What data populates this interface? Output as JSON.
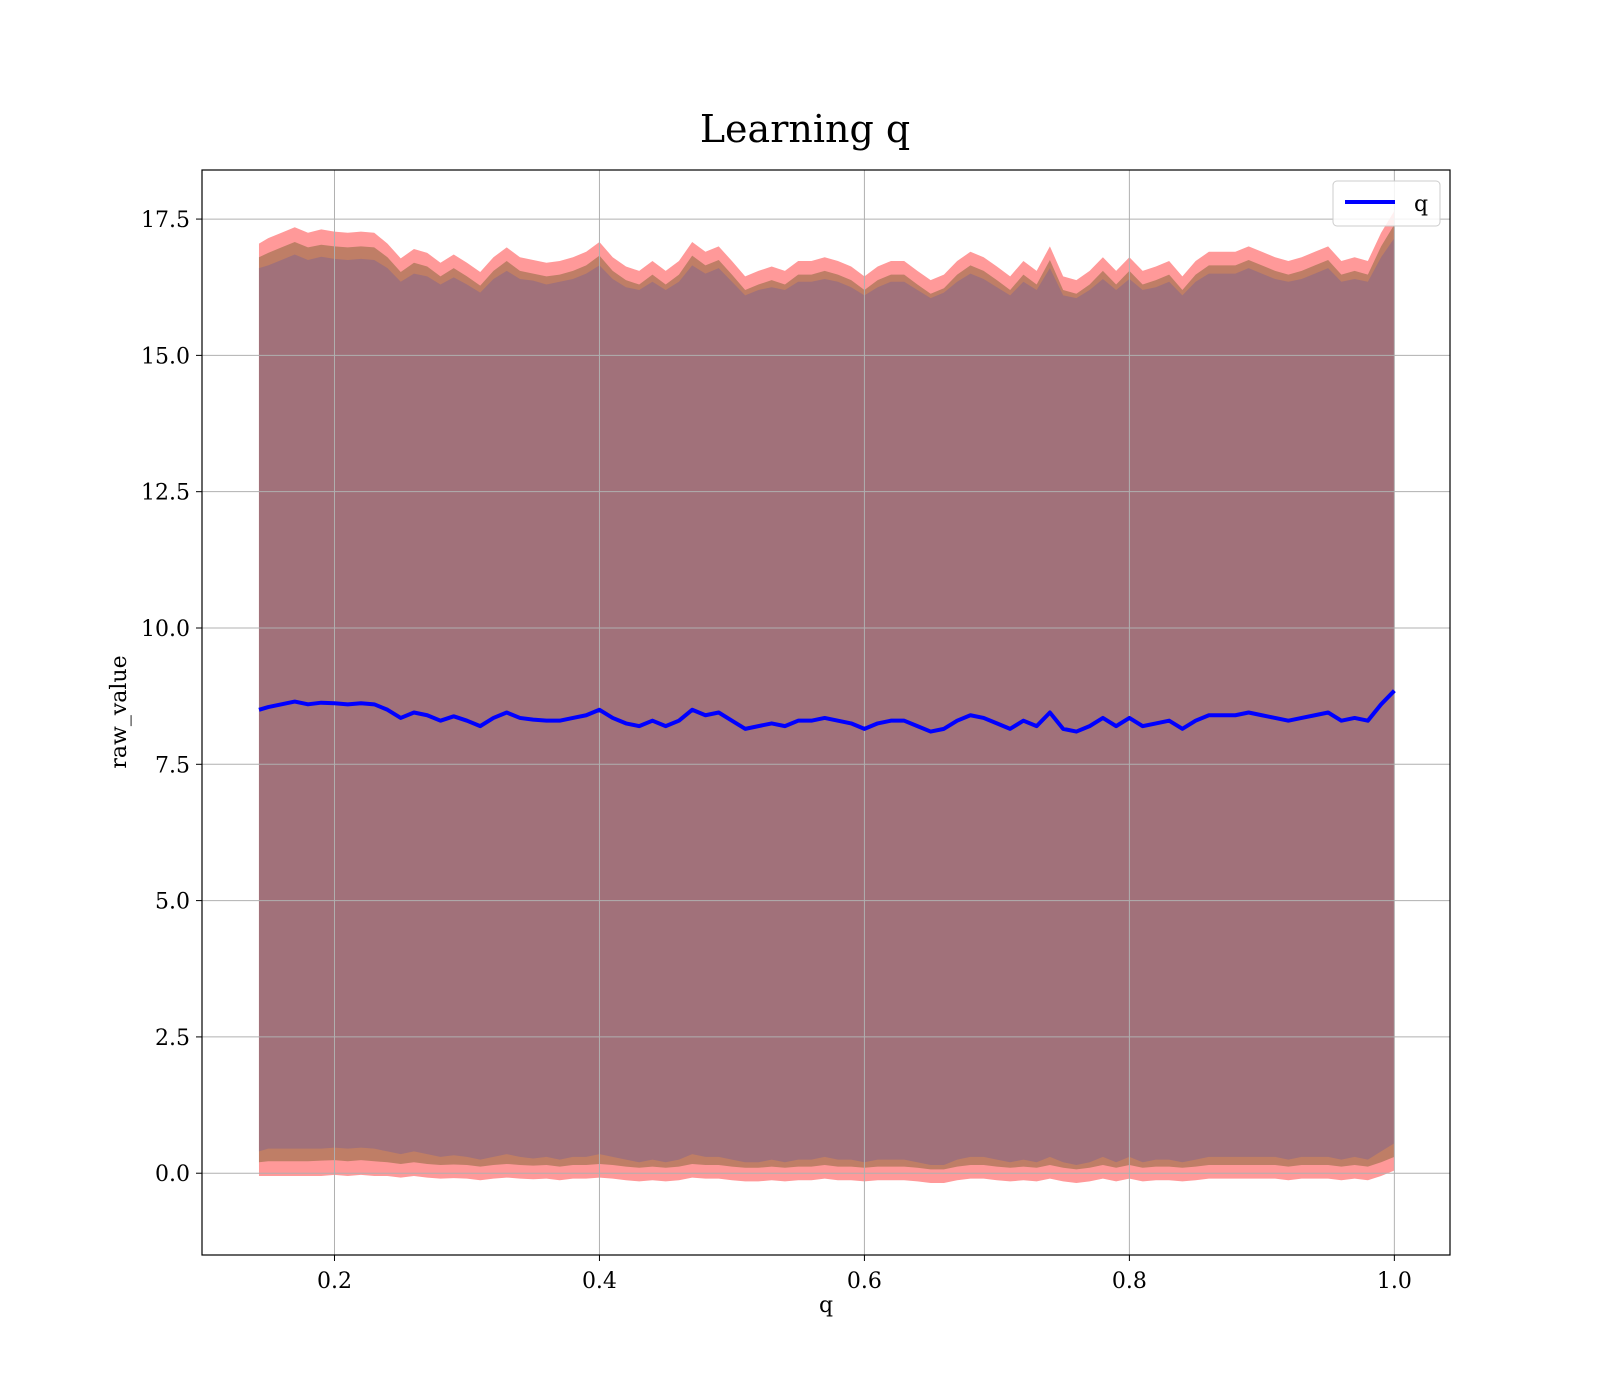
{
  "chart_data": {
    "type": "line",
    "title": "Learning q",
    "xlabel": "q",
    "ylabel": "raw_value",
    "xlim": [
      0.1,
      1.042
    ],
    "ylim": [
      -1.5,
      18.4
    ],
    "xticks": [
      0.2,
      0.4,
      0.6,
      0.8,
      1.0
    ],
    "yticks": [
      0.0,
      2.5,
      5.0,
      7.5,
      10.0,
      12.5,
      15.0,
      17.5
    ],
    "x_tick_labels": [
      "0.2",
      "0.4",
      "0.6",
      "0.8",
      "1.0"
    ],
    "y_tick_labels": [
      "0.0",
      "2.5",
      "5.0",
      "7.5",
      "10.0",
      "12.5",
      "15.0",
      "17.5"
    ],
    "grid": true,
    "legend": {
      "position": "top-right",
      "entries": [
        {
          "name": "q",
          "color": "#0000ff"
        }
      ]
    },
    "colors": {
      "line": "#0000ff",
      "outer_band": "#ff9999",
      "middle_band": "#bf7e66",
      "inner_band": "#a1717a",
      "grid": "#b0b0b0"
    },
    "series": [
      {
        "name": "q",
        "x": [
          0.143,
          0.15,
          0.16,
          0.17,
          0.18,
          0.19,
          0.2,
          0.21,
          0.22,
          0.23,
          0.24,
          0.25,
          0.26,
          0.27,
          0.28,
          0.29,
          0.3,
          0.31,
          0.32,
          0.33,
          0.34,
          0.35,
          0.36,
          0.37,
          0.38,
          0.39,
          0.4,
          0.41,
          0.42,
          0.43,
          0.44,
          0.45,
          0.46,
          0.47,
          0.48,
          0.49,
          0.5,
          0.51,
          0.52,
          0.53,
          0.54,
          0.55,
          0.56,
          0.57,
          0.58,
          0.59,
          0.6,
          0.61,
          0.62,
          0.63,
          0.64,
          0.65,
          0.66,
          0.67,
          0.68,
          0.69,
          0.7,
          0.71,
          0.72,
          0.73,
          0.74,
          0.75,
          0.76,
          0.77,
          0.78,
          0.79,
          0.8,
          0.81,
          0.82,
          0.83,
          0.84,
          0.85,
          0.86,
          0.87,
          0.88,
          0.89,
          0.9,
          0.91,
          0.92,
          0.93,
          0.94,
          0.95,
          0.96,
          0.97,
          0.98,
          0.99,
          1.0
        ],
        "mean": [
          8.5,
          8.55,
          8.6,
          8.65,
          8.6,
          8.63,
          8.62,
          8.6,
          8.62,
          8.6,
          8.5,
          8.35,
          8.45,
          8.4,
          8.3,
          8.38,
          8.3,
          8.2,
          8.35,
          8.45,
          8.35,
          8.32,
          8.3,
          8.3,
          8.35,
          8.4,
          8.5,
          8.35,
          8.25,
          8.2,
          8.3,
          8.2,
          8.3,
          8.5,
          8.4,
          8.45,
          8.3,
          8.15,
          8.2,
          8.25,
          8.2,
          8.3,
          8.3,
          8.35,
          8.3,
          8.25,
          8.15,
          8.25,
          8.3,
          8.3,
          8.2,
          8.1,
          8.15,
          8.3,
          8.4,
          8.35,
          8.25,
          8.15,
          8.3,
          8.2,
          8.45,
          8.15,
          8.1,
          8.2,
          8.35,
          8.2,
          8.35,
          8.2,
          8.25,
          8.3,
          8.15,
          8.3,
          8.4,
          8.4,
          8.4,
          8.45,
          8.4,
          8.35,
          8.3,
          8.35,
          8.4,
          8.45,
          8.3,
          8.35,
          8.3,
          8.6,
          8.85
        ],
        "band_inner": [
          8.1,
          8.1,
          8.15,
          8.2,
          8.15,
          8.18,
          8.15,
          8.15,
          8.15,
          8.15,
          8.1,
          8.0,
          8.05,
          8.05,
          8.0,
          8.05,
          8.0,
          7.95,
          8.05,
          8.1,
          8.05,
          8.05,
          8.0,
          8.05,
          8.05,
          8.1,
          8.15,
          8.05,
          8.0,
          8.0,
          8.05,
          8.0,
          8.05,
          8.15,
          8.1,
          8.15,
          8.05,
          7.95,
          8.0,
          8.0,
          8.0,
          8.05,
          8.05,
          8.05,
          8.05,
          8.0,
          7.95,
          8.0,
          8.05,
          8.05,
          8.0,
          7.95,
          8.0,
          8.05,
          8.1,
          8.05,
          8.0,
          7.95,
          8.05,
          8.0,
          8.15,
          7.95,
          7.95,
          8.0,
          8.05,
          8.0,
          8.05,
          8.0,
          8.0,
          8.05,
          7.95,
          8.05,
          8.1,
          8.1,
          8.1,
          8.15,
          8.1,
          8.05,
          8.05,
          8.05,
          8.1,
          8.15,
          8.05,
          8.05,
          8.05,
          8.2,
          8.3
        ],
        "band_middle": [
          8.3,
          8.33,
          8.38,
          8.43,
          8.38,
          8.4,
          8.38,
          8.38,
          8.38,
          8.38,
          8.3,
          8.18,
          8.25,
          8.23,
          8.15,
          8.22,
          8.15,
          8.08,
          8.2,
          8.28,
          8.2,
          8.18,
          8.15,
          8.18,
          8.2,
          8.25,
          8.33,
          8.2,
          8.13,
          8.1,
          8.18,
          8.1,
          8.18,
          8.33,
          8.25,
          8.3,
          8.18,
          8.05,
          8.1,
          8.13,
          8.1,
          8.18,
          8.18,
          8.2,
          8.18,
          8.13,
          8.05,
          8.13,
          8.18,
          8.18,
          8.1,
          8.03,
          8.08,
          8.18,
          8.25,
          8.2,
          8.13,
          8.05,
          8.18,
          8.1,
          8.3,
          8.05,
          8.03,
          8.1,
          8.2,
          8.1,
          8.2,
          8.1,
          8.13,
          8.18,
          8.05,
          8.18,
          8.25,
          8.25,
          8.25,
          8.3,
          8.25,
          8.2,
          8.18,
          8.2,
          8.25,
          8.3,
          8.18,
          8.2,
          8.18,
          8.4,
          8.55
        ],
        "band_outer": [
          8.55,
          8.6,
          8.65,
          8.7,
          8.65,
          8.68,
          8.65,
          8.65,
          8.65,
          8.65,
          8.55,
          8.43,
          8.5,
          8.48,
          8.4,
          8.47,
          8.4,
          8.33,
          8.45,
          8.53,
          8.45,
          8.43,
          8.4,
          8.43,
          8.45,
          8.5,
          8.58,
          8.45,
          8.38,
          8.35,
          8.43,
          8.35,
          8.43,
          8.58,
          8.5,
          8.55,
          8.43,
          8.3,
          8.35,
          8.38,
          8.35,
          8.43,
          8.43,
          8.45,
          8.43,
          8.38,
          8.3,
          8.38,
          8.43,
          8.43,
          8.35,
          8.28,
          8.33,
          8.43,
          8.5,
          8.45,
          8.38,
          8.3,
          8.43,
          8.35,
          8.55,
          8.3,
          8.28,
          8.35,
          8.45,
          8.35,
          8.45,
          8.35,
          8.38,
          8.43,
          8.3,
          8.43,
          8.5,
          8.5,
          8.5,
          8.55,
          8.5,
          8.45,
          8.43,
          8.45,
          8.5,
          8.55,
          8.43,
          8.45,
          8.43,
          8.65,
          8.8
        ]
      }
    ]
  }
}
